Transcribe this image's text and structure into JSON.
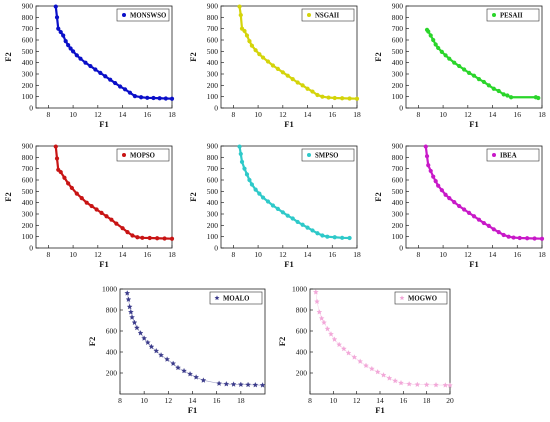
{
  "chart_data": [
    {
      "type": "scatter",
      "legend": "MONSWSO",
      "legend_position": "top-right",
      "color": "#0a0fc8",
      "marker": "dot",
      "xlabel": "F1",
      "ylabel": "F2",
      "xlim": [
        7,
        18
      ],
      "ylim": [
        0,
        900
      ],
      "xticks": [
        "8",
        "10",
        "12",
        "14",
        "16",
        "18"
      ],
      "yticks": [
        "0",
        "100",
        "200",
        "300",
        "400",
        "500",
        "600",
        "700",
        "800",
        "900"
      ],
      "x": [
        8.6,
        8.7,
        8.8,
        9.0,
        9.2,
        9.4,
        9.6,
        9.8,
        10.0,
        10.3,
        10.6,
        11.0,
        11.4,
        11.8,
        12.2,
        12.6,
        13.0,
        13.4,
        13.8,
        14.2,
        14.6,
        15.0,
        15.5,
        16.0,
        16.5,
        17.0,
        17.5,
        18.0
      ],
      "y": [
        895,
        800,
        700,
        670,
        640,
        590,
        555,
        525,
        500,
        465,
        435,
        400,
        370,
        340,
        310,
        280,
        250,
        220,
        190,
        165,
        135,
        105,
        95,
        90,
        88,
        86,
        84,
        82
      ]
    },
    {
      "type": "scatter",
      "legend": "NSGAII",
      "legend_position": "top-right",
      "color": "#d4d40a",
      "marker": "dot",
      "xlabel": "F1",
      "ylabel": "F2",
      "xlim": [
        7,
        18
      ],
      "ylim": [
        0,
        900
      ],
      "xticks": [
        "8",
        "10",
        "12",
        "14",
        "16",
        "18"
      ],
      "yticks": [
        "0",
        "100",
        "200",
        "300",
        "400",
        "500",
        "600",
        "700",
        "800",
        "900"
      ],
      "x": [
        8.5,
        8.6,
        8.7,
        8.9,
        9.1,
        9.3,
        9.5,
        9.8,
        10.1,
        10.4,
        10.8,
        11.2,
        11.6,
        12.0,
        12.4,
        12.8,
        13.2,
        13.6,
        14.0,
        14.4,
        14.8,
        15.2,
        15.7,
        16.2,
        16.8,
        17.4,
        18.0
      ],
      "y": [
        895,
        820,
        700,
        680,
        640,
        590,
        550,
        510,
        475,
        445,
        410,
        375,
        345,
        315,
        285,
        255,
        225,
        200,
        170,
        145,
        115,
        100,
        92,
        88,
        86,
        84,
        82
      ]
    },
    {
      "type": "scatter",
      "legend": "PESAII",
      "legend_position": "top-right",
      "color": "#2ad52a",
      "marker": "dot",
      "xlabel": "F1",
      "ylabel": "F2",
      "xlim": [
        7,
        18
      ],
      "ylim": [
        0,
        900
      ],
      "xticks": [
        "8",
        "10",
        "12",
        "14",
        "16",
        "18"
      ],
      "yticks": [
        "0",
        "100",
        "200",
        "300",
        "400",
        "500",
        "600",
        "700",
        "800",
        "900"
      ],
      "x": [
        8.7,
        8.8,
        9.0,
        9.2,
        9.4,
        9.6,
        9.9,
        10.2,
        10.5,
        10.9,
        11.3,
        11.7,
        12.1,
        12.5,
        12.9,
        13.3,
        13.7,
        14.1,
        14.5,
        14.9,
        15.2,
        15.5,
        17.5,
        17.7
      ],
      "y": [
        690,
        675,
        640,
        600,
        560,
        530,
        495,
        465,
        435,
        400,
        370,
        340,
        310,
        285,
        255,
        230,
        200,
        170,
        150,
        120,
        110,
        95,
        95,
        88
      ]
    },
    {
      "type": "scatter",
      "legend": "MOPSO",
      "legend_position": "top-right",
      "color": "#c81414",
      "marker": "dot",
      "xlabel": "F1",
      "ylabel": "F2",
      "xlim": [
        7,
        18
      ],
      "ylim": [
        0,
        900
      ],
      "xticks": [
        "8",
        "10",
        "12",
        "14",
        "16",
        "18"
      ],
      "yticks": [
        "0",
        "100",
        "200",
        "300",
        "400",
        "500",
        "600",
        "700",
        "800",
        "900"
      ],
      "x": [
        8.6,
        8.7,
        8.8,
        9.0,
        9.3,
        9.6,
        9.9,
        10.3,
        10.7,
        11.1,
        11.5,
        11.9,
        12.3,
        12.7,
        13.1,
        13.5,
        14.0,
        14.4,
        14.8,
        15.2,
        15.6,
        16.2,
        16.8,
        17.4,
        18.0
      ],
      "y": [
        895,
        790,
        690,
        670,
        620,
        570,
        530,
        480,
        440,
        400,
        370,
        340,
        310,
        280,
        250,
        215,
        175,
        140,
        110,
        95,
        90,
        88,
        86,
        84,
        82
      ]
    },
    {
      "type": "scatter",
      "legend": "SMPSO",
      "legend_position": "top-right",
      "color": "#2ec9c9",
      "marker": "dot",
      "xlabel": "F1",
      "ylabel": "F2",
      "xlim": [
        7,
        18
      ],
      "ylim": [
        0,
        900
      ],
      "xticks": [
        "8",
        "10",
        "12",
        "14",
        "16",
        "18"
      ],
      "yticks": [
        "0",
        "100",
        "200",
        "300",
        "400",
        "500",
        "600",
        "700",
        "800",
        "900"
      ],
      "x": [
        8.5,
        8.6,
        8.7,
        8.9,
        9.1,
        9.3,
        9.5,
        9.8,
        10.1,
        10.4,
        10.8,
        11.2,
        11.6,
        12.0,
        12.4,
        12.8,
        13.2,
        13.6,
        14.0,
        14.4,
        14.8,
        15.2,
        15.6,
        16.2,
        16.8,
        17.4
      ],
      "y": [
        895,
        830,
        760,
        700,
        650,
        600,
        560,
        515,
        480,
        445,
        410,
        375,
        345,
        315,
        285,
        260,
        230,
        205,
        180,
        155,
        130,
        110,
        100,
        95,
        90,
        88
      ]
    },
    {
      "type": "scatter",
      "legend": "IBEA",
      "legend_position": "top-right",
      "color": "#c819c8",
      "marker": "dot",
      "xlabel": "F1",
      "ylabel": "F2",
      "xlim": [
        7,
        18
      ],
      "ylim": [
        0,
        900
      ],
      "xticks": [
        "8",
        "10",
        "12",
        "14",
        "16",
        "18"
      ],
      "yticks": [
        "0",
        "100",
        "200",
        "300",
        "400",
        "500",
        "600",
        "700",
        "800",
        "900"
      ],
      "x": [
        8.6,
        8.7,
        8.8,
        9.0,
        9.2,
        9.4,
        9.6,
        9.9,
        10.2,
        10.5,
        10.9,
        11.3,
        11.7,
        12.1,
        12.5,
        12.9,
        13.3,
        13.7,
        14.1,
        14.5,
        14.9,
        15.3,
        15.7,
        16.2,
        16.8,
        17.4,
        18.0
      ],
      "y": [
        895,
        810,
        730,
        680,
        630,
        590,
        550,
        510,
        470,
        440,
        405,
        370,
        340,
        310,
        280,
        250,
        220,
        195,
        165,
        140,
        115,
        100,
        92,
        88,
        86,
        84,
        82
      ]
    },
    {
      "type": "scatter",
      "legend": "MOALO",
      "legend_position": "top-right",
      "color": "#3a3a8a",
      "marker": "star",
      "xlabel": "F1",
      "ylabel": "F2",
      "xlim": [
        8,
        20
      ],
      "ylim": [
        0,
        1000
      ],
      "xticks": [
        "8",
        "10",
        "12",
        "14",
        "16",
        "18"
      ],
      "yticks": [
        "200",
        "400",
        "600",
        "800",
        "1000"
      ],
      "x": [
        8.6,
        8.7,
        8.8,
        8.9,
        9.0,
        9.2,
        9.4,
        9.7,
        10.0,
        10.3,
        10.6,
        11.0,
        11.4,
        11.9,
        12.4,
        12.8,
        13.3,
        13.8,
        14.3,
        14.9,
        16.2,
        16.8,
        17.4,
        18.0,
        18.6,
        19.2,
        19.8
      ],
      "y": [
        960,
        900,
        830,
        780,
        730,
        680,
        630,
        580,
        530,
        490,
        450,
        410,
        370,
        330,
        290,
        250,
        220,
        190,
        160,
        130,
        100,
        95,
        92,
        90,
        88,
        86,
        84
      ]
    },
    {
      "type": "scatter",
      "legend": "MOGWO",
      "legend_position": "top-right",
      "color": "#f2a7d8",
      "marker": "star",
      "xlabel": "F1",
      "ylabel": "F2",
      "xlim": [
        8,
        20
      ],
      "ylim": [
        0,
        1000
      ],
      "xticks": [
        "8",
        "10",
        "12",
        "14",
        "16",
        "18",
        "20"
      ],
      "yticks": [
        "200",
        "400",
        "600",
        "800",
        "1000"
      ],
      "x": [
        8.5,
        8.6,
        8.8,
        9.0,
        9.2,
        9.5,
        9.8,
        10.1,
        10.5,
        10.9,
        11.3,
        11.8,
        12.3,
        12.8,
        13.3,
        13.8,
        14.3,
        14.8,
        15.3,
        15.8,
        16.5,
        17.2,
        18.0,
        18.8,
        19.6,
        20.0
      ],
      "y": [
        970,
        880,
        780,
        720,
        680,
        620,
        570,
        520,
        470,
        430,
        390,
        350,
        310,
        270,
        240,
        210,
        180,
        150,
        125,
        105,
        95,
        90,
        88,
        86,
        84,
        82
      ]
    }
  ]
}
